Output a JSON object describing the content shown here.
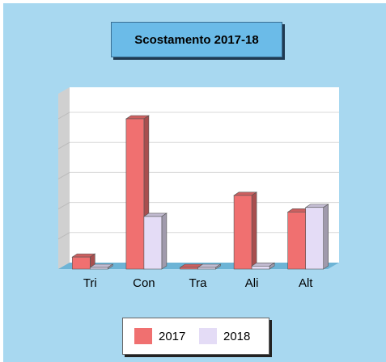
{
  "chart_data": {
    "type": "bar",
    "title": "Scostamento 2017-18",
    "categories": [
      "Tri",
      "Con",
      "Tra",
      "Ali",
      "Alt"
    ],
    "series": [
      {
        "name": "2017",
        "color": "#f07070",
        "values": [
          8,
          100,
          1,
          49,
          38
        ]
      },
      {
        "name": "2018",
        "color": "#e4dcf6",
        "values": [
          1,
          35,
          1,
          2,
          41
        ]
      }
    ],
    "ylim": [
      0,
      100
    ],
    "grid": true,
    "legend_position": "bottom"
  }
}
